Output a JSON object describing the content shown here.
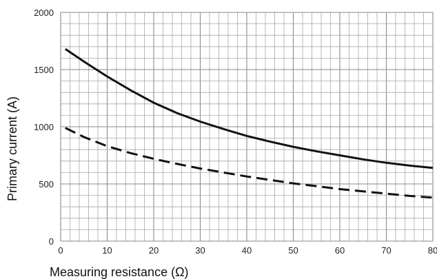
{
  "chart_data": {
    "type": "line",
    "title": "",
    "xlabel": "Measuring resistance (Ω)",
    "ylabel": "Primary current (A)",
    "xlim": [
      0,
      80
    ],
    "ylim": [
      0,
      2000
    ],
    "x_ticks": [
      0,
      10,
      20,
      30,
      40,
      50,
      60,
      70,
      80
    ],
    "x_tick_labels": [
      "0",
      "10",
      "20",
      "30",
      "40",
      "50",
      "60",
      "70",
      "80"
    ],
    "y_ticks": [
      0,
      500,
      1000,
      1500,
      2000
    ],
    "y_tick_labels": [
      "0",
      "500",
      "1000",
      "1500",
      "2000"
    ],
    "grid": true,
    "grid_x_step": 2,
    "grid_y_step": 100,
    "legend": "none",
    "series": [
      {
        "style": "solid",
        "color": "#111111",
        "x": [
          1,
          5,
          10,
          15,
          20,
          25,
          30,
          35,
          40,
          45,
          50,
          55,
          60,
          65,
          70,
          75,
          80
        ],
        "y": [
          1680,
          1570,
          1440,
          1320,
          1210,
          1120,
          1045,
          980,
          920,
          870,
          825,
          785,
          750,
          715,
          685,
          660,
          640
        ]
      },
      {
        "style": "dashed",
        "color": "#111111",
        "x": [
          1,
          5,
          10,
          15,
          20,
          25,
          30,
          35,
          40,
          45,
          50,
          55,
          60,
          65,
          70,
          75,
          80
        ],
        "y": [
          990,
          910,
          830,
          770,
          720,
          675,
          635,
          600,
          565,
          535,
          505,
          480,
          455,
          435,
          415,
          395,
          380
        ]
      }
    ]
  }
}
